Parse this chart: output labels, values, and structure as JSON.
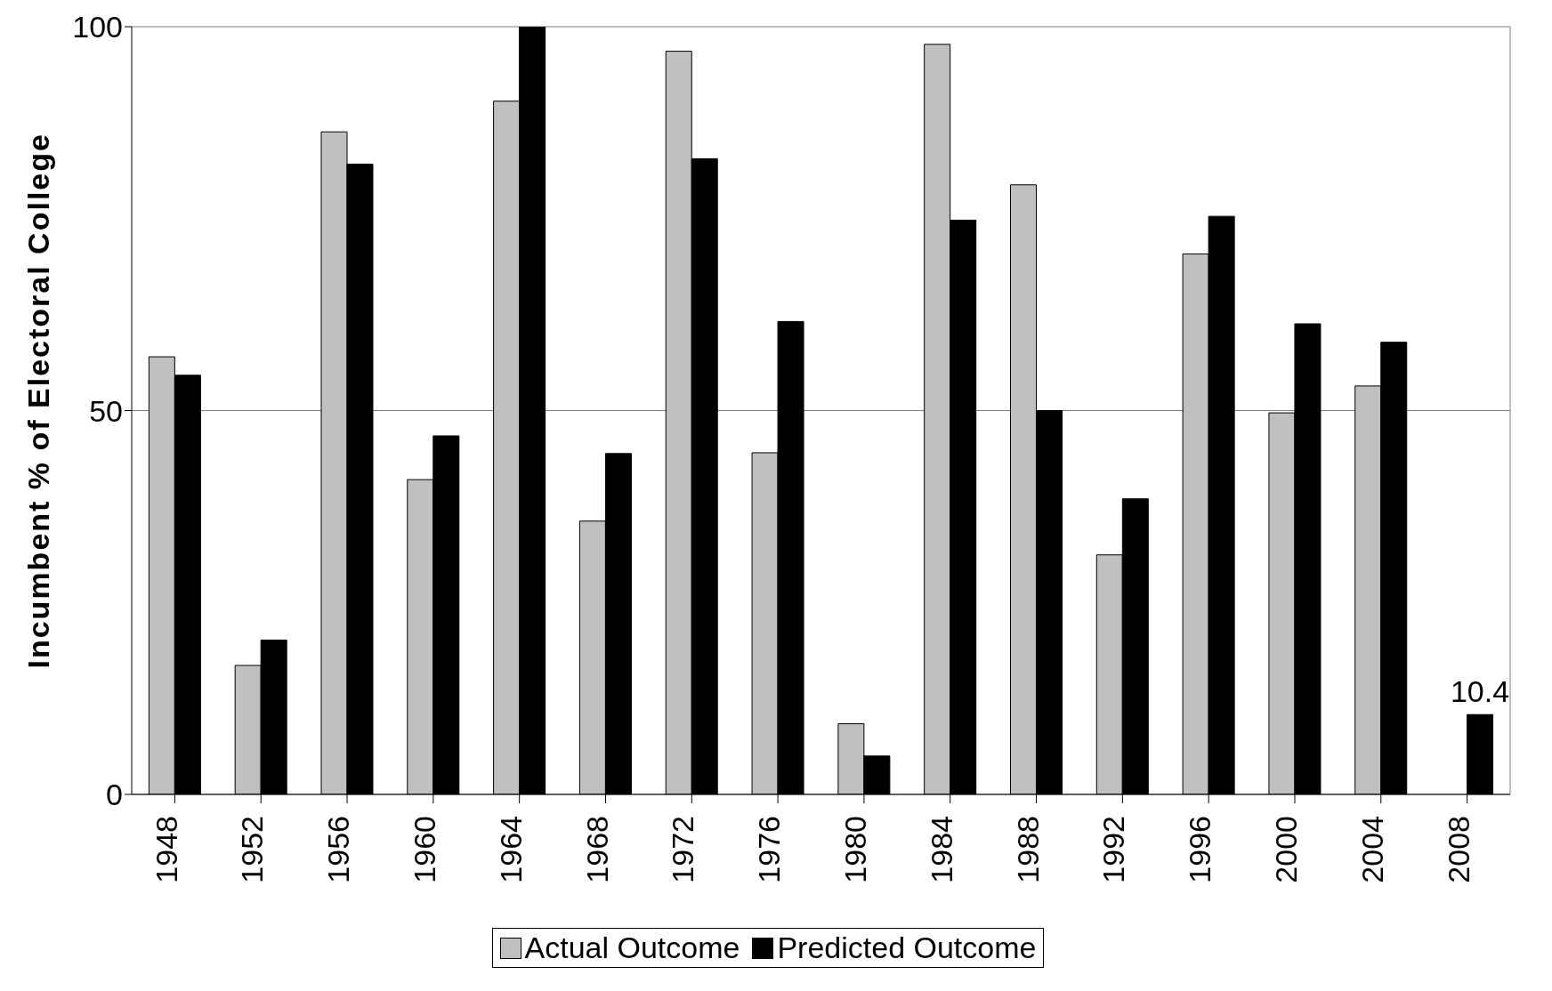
{
  "chart_data": {
    "type": "bar",
    "ylabel": "Incumbent % of Electoral College",
    "categories": [
      "1948",
      "1952",
      "1956",
      "1960",
      "1964",
      "1968",
      "1972",
      "1976",
      "1980",
      "1984",
      "1988",
      "1992",
      "1996",
      "2000",
      "2004",
      "2008"
    ],
    "series": [
      {
        "name": "Actual Outcome",
        "color": "#c0c0c0",
        "values": [
          57.0,
          16.8,
          86.3,
          41.0,
          90.3,
          35.6,
          96.8,
          44.5,
          9.2,
          97.7,
          79.4,
          31.2,
          70.4,
          49.7,
          53.2,
          null
        ]
      },
      {
        "name": "Predicted Outcome",
        "color": "#000000",
        "values": [
          54.6,
          20.1,
          82.1,
          46.7,
          100,
          44.4,
          82.8,
          61.6,
          5.0,
          74.8,
          50.0,
          38.5,
          75.3,
          61.3,
          58.9,
          10.4
        ],
        "value_labels": [
          null,
          null,
          null,
          null,
          null,
          null,
          null,
          null,
          null,
          null,
          null,
          null,
          null,
          null,
          null,
          "10.4"
        ]
      }
    ],
    "ylim": [
      0,
      100
    ],
    "yticks": [
      0,
      50,
      100
    ],
    "grid": "y",
    "legend": "bottom"
  }
}
